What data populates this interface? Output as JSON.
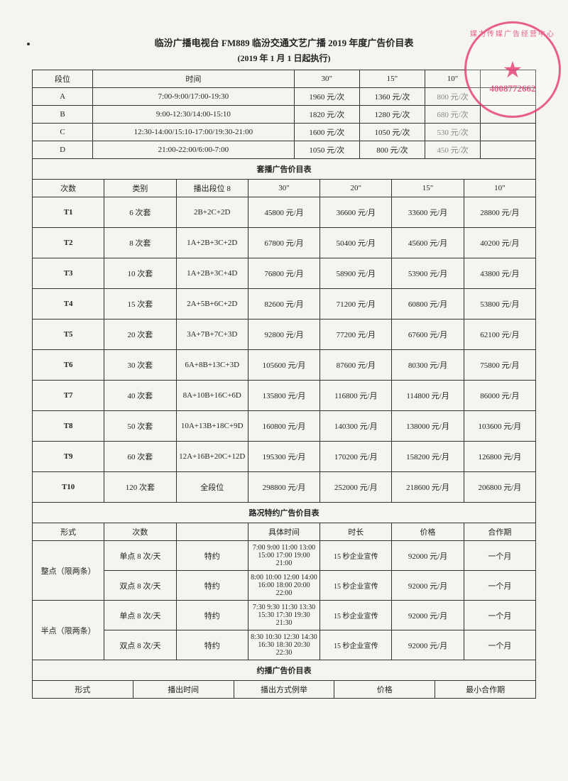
{
  "title": "临汾广播电视台 FM889 临汾交通文艺广播 2019 年度广告价目表",
  "subtitle": "(2019 年 1 月 1 日起执行)",
  "stamp": {
    "arc": "媒力传媒广告经营中心",
    "phone": "4008772662"
  },
  "t1": {
    "headers": [
      "段位",
      "时间",
      "30\"",
      "15\"",
      "10\""
    ],
    "rows": [
      {
        "seg": "A",
        "time": "7:00-9:00/17:00-19:30",
        "p30": "1960 元/次",
        "p15": "1360 元/次",
        "p10": "800 元/次"
      },
      {
        "seg": "B",
        "time": "9:00-12:30/14:00-15:10",
        "p30": "1820 元/次",
        "p15": "1280 元/次",
        "p10": "680 元/次"
      },
      {
        "seg": "C",
        "time": "12:30-14:00/15:10-17:00/19:30-21:00",
        "p30": "1600 元/次",
        "p15": "1050 元/次",
        "p10": "530 元/次"
      },
      {
        "seg": "D",
        "time": "21:00-22:00/6:00-7:00",
        "p30": "1050 元/次",
        "p15": "800 元/次",
        "p10": "450 元/次"
      }
    ]
  },
  "sec2_title": "套播广告价目表",
  "t2": {
    "headers": [
      "次数",
      "类别",
      "播出段位 8",
      "30\"",
      "20\"",
      "15\"",
      "10\""
    ],
    "rows": [
      {
        "c": "T1",
        "cat": "6 次套",
        "seg": "2B+2C+2D",
        "p30": "45800 元/月",
        "p20": "36600 元/月",
        "p15": "33600 元/月",
        "p10": "28800 元/月"
      },
      {
        "c": "T2",
        "cat": "8 次套",
        "seg": "1A+2B+3C+2D",
        "p30": "67800 元/月",
        "p20": "50400 元/月",
        "p15": "45600 元/月",
        "p10": "40200 元/月"
      },
      {
        "c": "T3",
        "cat": "10 次套",
        "seg": "1A+2B+3C+4D",
        "p30": "76800 元/月",
        "p20": "58900 元/月",
        "p15": "53900 元/月",
        "p10": "43800 元/月"
      },
      {
        "c": "T4",
        "cat": "15 次套",
        "seg": "2A+5B+6C+2D",
        "p30": "82600 元/月",
        "p20": "71200 元/月",
        "p15": "60800 元/月",
        "p10": "53800 元/月"
      },
      {
        "c": "T5",
        "cat": "20 次套",
        "seg": "3A+7B+7C+3D",
        "p30": "92800 元/月",
        "p20": "77200 元/月",
        "p15": "67600 元/月",
        "p10": "62100 元/月"
      },
      {
        "c": "T6",
        "cat": "30 次套",
        "seg": "6A+8B+13C+3D",
        "p30": "105600 元/月",
        "p20": "87600 元/月",
        "p15": "80300 元/月",
        "p10": "75800 元/月"
      },
      {
        "c": "T7",
        "cat": "40 次套",
        "seg": "8A+10B+16C+6D",
        "p30": "135800 元/月",
        "p20": "116800 元/月",
        "p15": "114800 元/月",
        "p10": "86000 元/月"
      },
      {
        "c": "T8",
        "cat": "50 次套",
        "seg": "10A+13B+18C+9D",
        "p30": "160800 元/月",
        "p20": "140300 元/月",
        "p15": "138000 元/月",
        "p10": "103600 元/月"
      },
      {
        "c": "T9",
        "cat": "60 次套",
        "seg": "12A+16B+20C+12D",
        "p30": "195300 元/月",
        "p20": "170200 元/月",
        "p15": "158200 元/月",
        "p10": "126800 元/月"
      },
      {
        "c": "T10",
        "cat": "120 次套",
        "seg": "全段位",
        "p30": "298800 元/月",
        "p20": "252000 元/月",
        "p15": "218600 元/月",
        "p10": "206800 元/月"
      }
    ]
  },
  "sec3_title": "路况特约广告价目表",
  "t3": {
    "headers": [
      "形式",
      "次数",
      "",
      "具体时间",
      "时长",
      "价格",
      "合作期"
    ],
    "label_te": "特约",
    "form1": "整点（限两条）",
    "form2": "半点（限两条）",
    "rows": [
      {
        "cnt": "单点 8 次/天",
        "time": "7:00 9:00 11:00 13:00 15:00 17:00 19:00 21:00",
        "dur": "15 秒企业宣传",
        "price": "92000 元/月",
        "term": "一个月"
      },
      {
        "cnt": "双点 8 次/天",
        "time": "8:00 10:00 12:00 14:00 16:00 18:00 20:00 22:00",
        "dur": "15 秒企业宣传",
        "price": "92000 元/月",
        "term": "一个月"
      },
      {
        "cnt": "单点 8 次/天",
        "time": "7:30 9:30 11:30 13:30 15:30 17:30 19:30 21:30",
        "dur": "15 秒企业宣传",
        "price": "92000 元/月",
        "term": "一个月"
      },
      {
        "cnt": "双点 8 次/天",
        "time": "8:30 10:30 12:30 14:30 16:30 18:30 20:30 22:30",
        "dur": "15 秒企业宣传",
        "price": "92000 元/月",
        "term": "一个月"
      }
    ]
  },
  "sec4_title": "约播广告价目表",
  "t4": {
    "headers": [
      "形式",
      "播出时间",
      "播出方式例举",
      "价格",
      "最小合作期"
    ]
  }
}
